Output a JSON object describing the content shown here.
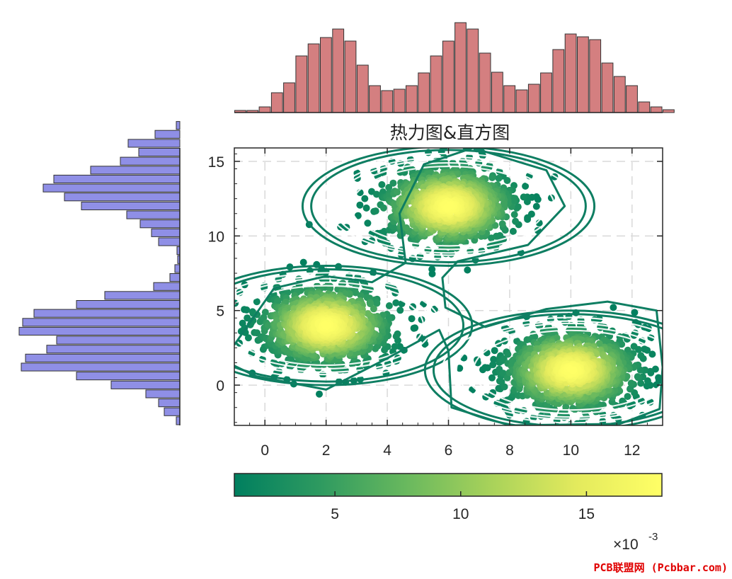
{
  "chart_data": [
    {
      "type": "heatmap",
      "title": "热力图&直方图",
      "xlim": [
        -1,
        13
      ],
      "ylim": [
        -2.7,
        15.9
      ],
      "x_ticks": [
        0,
        2,
        4,
        6,
        8,
        10,
        12
      ],
      "y_ticks": [
        0,
        5,
        10,
        15
      ],
      "grid": true,
      "clusters": [
        {
          "center_x": 2.0,
          "center_y": 4.0,
          "std_x": 1.1,
          "std_y": 1.4
        },
        {
          "center_x": 6.0,
          "center_y": 12.0,
          "std_x": 1.1,
          "std_y": 1.4
        },
        {
          "center_x": 10.0,
          "center_y": 1.0,
          "std_x": 1.1,
          "std_y": 1.4
        }
      ],
      "colorbar": {
        "ticks": [
          5,
          10,
          15
        ],
        "range": [
          1.0,
          18.0
        ],
        "exponent_label": "×10",
        "exponent": "-3",
        "colors": [
          "#007f5f",
          "#2e9a60",
          "#68b85e",
          "#a8d25a",
          "#e3ea5d",
          "#ffff66"
        ]
      },
      "contour_color": "#0e7e62"
    },
    {
      "type": "bar",
      "orientation": "vertical",
      "position": "top",
      "color": "#d47f80",
      "x_start": -1.0,
      "bin_width": 0.4,
      "values": [
        3,
        3,
        8,
        28,
        42,
        80,
        97,
        106,
        118,
        101,
        67,
        38,
        31,
        33,
        38,
        56,
        80,
        101,
        127,
        118,
        84,
        57,
        38,
        32,
        40,
        56,
        89,
        111,
        107,
        103,
        70,
        51,
        38,
        15,
        8,
        4
      ]
    },
    {
      "type": "bar",
      "orientation": "horizontal",
      "position": "left",
      "color": "#8f8fe6",
      "y_start": -2.7,
      "bin_width": 0.6,
      "values": [
        5,
        22,
        30,
        48,
        97,
        146,
        224,
        218,
        188,
        174,
        227,
        222,
        206,
        146,
        106,
        37,
        14,
        7,
        3,
        4,
        30,
        40,
        56,
        75,
        139,
        163,
        193,
        178,
        126,
        84,
        58,
        73,
        35,
        5
      ]
    }
  ],
  "watermark": "PCB联盟网 (Pcbbar.com)"
}
